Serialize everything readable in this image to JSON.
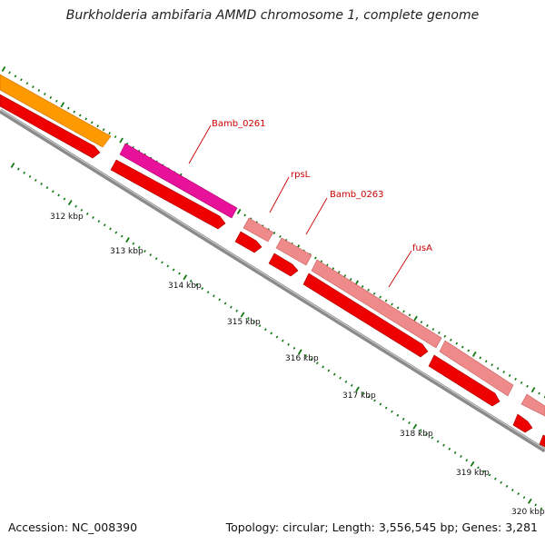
{
  "title": "Burkholderia ambifaria AMMD chromosome 1, complete genome",
  "footer": {
    "accession": "Accession: NC_008390",
    "topology": "Topology: circular; Length: 3,556,545 bp; Genes: 3,281"
  },
  "colors": {
    "backbone": "#8a8a8a",
    "cds_red": "#ee0000",
    "gene_orange": "#ff9900",
    "gene_magenta": "#e8119a",
    "gene_pink": "#ef8a8a",
    "tick_green": "#117711",
    "label_red": "#cc0000"
  },
  "kbp_labels": [
    "312 kbp",
    "313 kbp",
    "314 kbp",
    "315 kbp",
    "316 kbp",
    "317 kbp",
    "318 kbp",
    "319 kbp",
    "320 kbp"
  ],
  "gene_labels": [
    "Bamb_0261",
    "rpsL",
    "Bamb_0263",
    "fusA"
  ]
}
